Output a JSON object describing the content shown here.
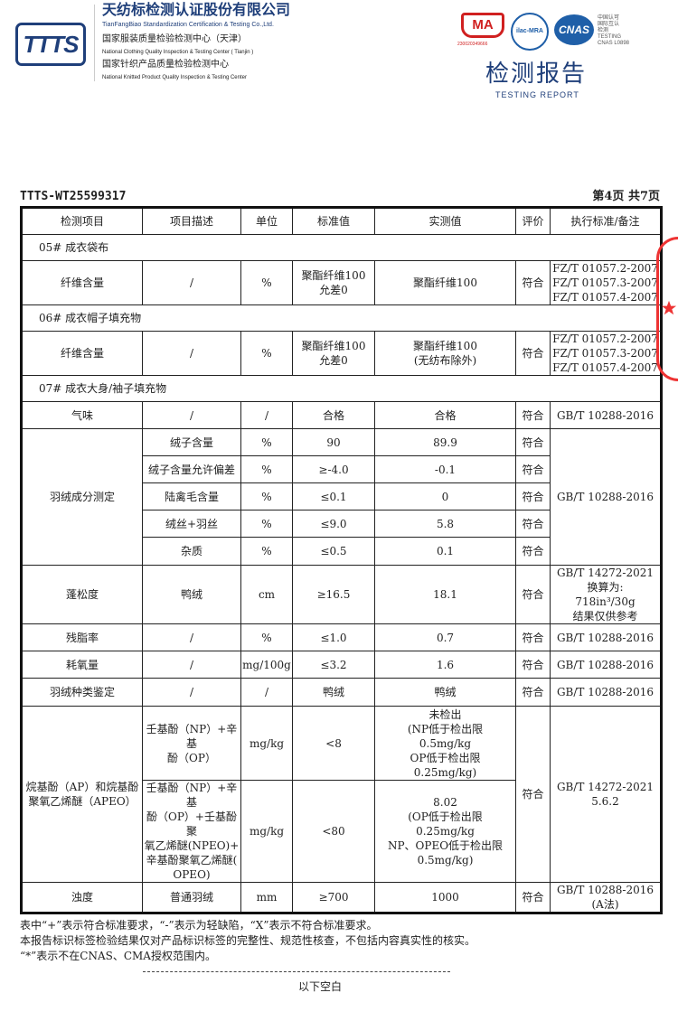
{
  "header": {
    "logo": "TTTS",
    "company_cn": "天纺标检测认证股份有限公司",
    "company_en": "TianFangBiao Standardization Certification & Testing Co.,Ltd.",
    "center1_cn": "国家服装质量检验检测中心（天津）",
    "center1_en": "National Clothing Quality Inspection & Testing Center ( Tianjin )",
    "center2_cn": "国家针织产品质量检验检测中心",
    "center2_en": "National Knitted Product Quality Inspection & Testing Center",
    "cma": "MA",
    "cma_no": "230020349666",
    "ilac": "ilac-MRA",
    "cnas": "CNAS",
    "cnas_text": "中国认可\n国际互认\n检测\nTESTING\nCNAS L0898",
    "report_title": "检测报告",
    "report_sub": "TESTING REPORT"
  },
  "report_no": "TTTS-WT25599317",
  "page": "第4页  共7页",
  "table": {
    "headers": [
      "检测项目",
      "项目描述",
      "单位",
      "标准值",
      "实测值",
      "评价",
      "执行标准/备注"
    ],
    "sec05": "05#      成衣袋布",
    "sec06": "06#      成衣帽子填充物",
    "sec07": "07#      成衣大身/袖子填充物",
    "r05": [
      "纤维含量",
      "/",
      "%",
      "聚酯纤维100\n允差0",
      "聚酯纤维100",
      "符合",
      "FZ/T 01057.2-2007\nFZ/T 01057.3-2007\nFZ/T 01057.4-2007"
    ],
    "r06": [
      "纤维含量",
      "/",
      "%",
      "聚酯纤维100\n允差0",
      "聚酯纤维100\n(无纺布除外)",
      "符合",
      "FZ/T 01057.2-2007\nFZ/T 01057.3-2007\nFZ/T 01057.4-2007"
    ],
    "odor": [
      "气味",
      "/",
      "/",
      "合格",
      "合格",
      "符合",
      "GB/T 10288-2016"
    ],
    "down_group": "羽绒成分测定",
    "down_std": "GB/T 10288-2016",
    "down": [
      [
        "绒子含量",
        "%",
        "90",
        "89.9",
        "符合"
      ],
      [
        "绒子含量允许偏差",
        "%",
        "≥-4.0",
        "-0.1",
        "符合"
      ],
      [
        "陆禽毛含量",
        "%",
        "≤0.1",
        "0",
        "符合"
      ],
      [
        "绒丝+羽丝",
        "%",
        "≤9.0",
        "5.8",
        "符合"
      ],
      [
        "杂质",
        "%",
        "≤0.5",
        "0.1",
        "符合"
      ]
    ],
    "fill": [
      "蓬松度",
      "鸭绒",
      "cm",
      "≥16.5",
      "18.1",
      "符合",
      "GB/T 14272-2021\n换算为:\n718in³/30g\n结果仅供参考"
    ],
    "fat": [
      "残脂率",
      "/",
      "%",
      "≤1.0",
      "0.7",
      "符合",
      "GB/T 10288-2016"
    ],
    "oxy": [
      "耗氧量",
      "/",
      "mg/100g",
      "≤3.2",
      "1.6",
      "符合",
      "GB/T 10288-2016"
    ],
    "kind": [
      "羽绒种类鉴定",
      "/",
      "/",
      "鸭绒",
      "鸭绒",
      "符合",
      "GB/T 10288-2016"
    ],
    "apeo_group": "烷基酚（AP）和烷基酚\n聚氧乙烯醚（APEO）",
    "apeo_eval": "符合",
    "apeo_std": "GB/T 14272-2021\n5.6.2",
    "apeo": [
      [
        "壬基酚（NP）+辛基\n酚（OP）",
        "mg/kg",
        "<8",
        "未检出\n(NP低于检出限\n0.5mg/kg\nOP低于检出限\n0.25mg/kg)"
      ],
      [
        "壬基酚（NP）+辛基\n酚（OP）+壬基酚聚\n氧乙烯醚(NPEO)+\n辛基酚聚氧乙烯醚(\nOPEO)",
        "mg/kg",
        "<80",
        "8.02\n(OP低于检出限\n0.25mg/kg\nNP、OPEO低于检出限\n0.5mg/kg)"
      ]
    ],
    "turb": [
      "浊度",
      "普通羽绒",
      "mm",
      "≥700",
      "1000",
      "符合",
      "GB/T 10288-2016\n(A法)"
    ]
  },
  "notes": [
    "表中“+”表示符合标准要求，“-”表示为轻缺陷，“X”表示不符合标准要求。",
    "本报告标识标签检验结果仅对产品标识标签的完整性、规范性核查，不包括内容真实性的核实。",
    "“*”表示不在CNAS、CMA授权范围内。"
  ],
  "end_text": "以下空白",
  "colors": {
    "brand": "#1f3f7a",
    "stamp": "#e33333"
  }
}
